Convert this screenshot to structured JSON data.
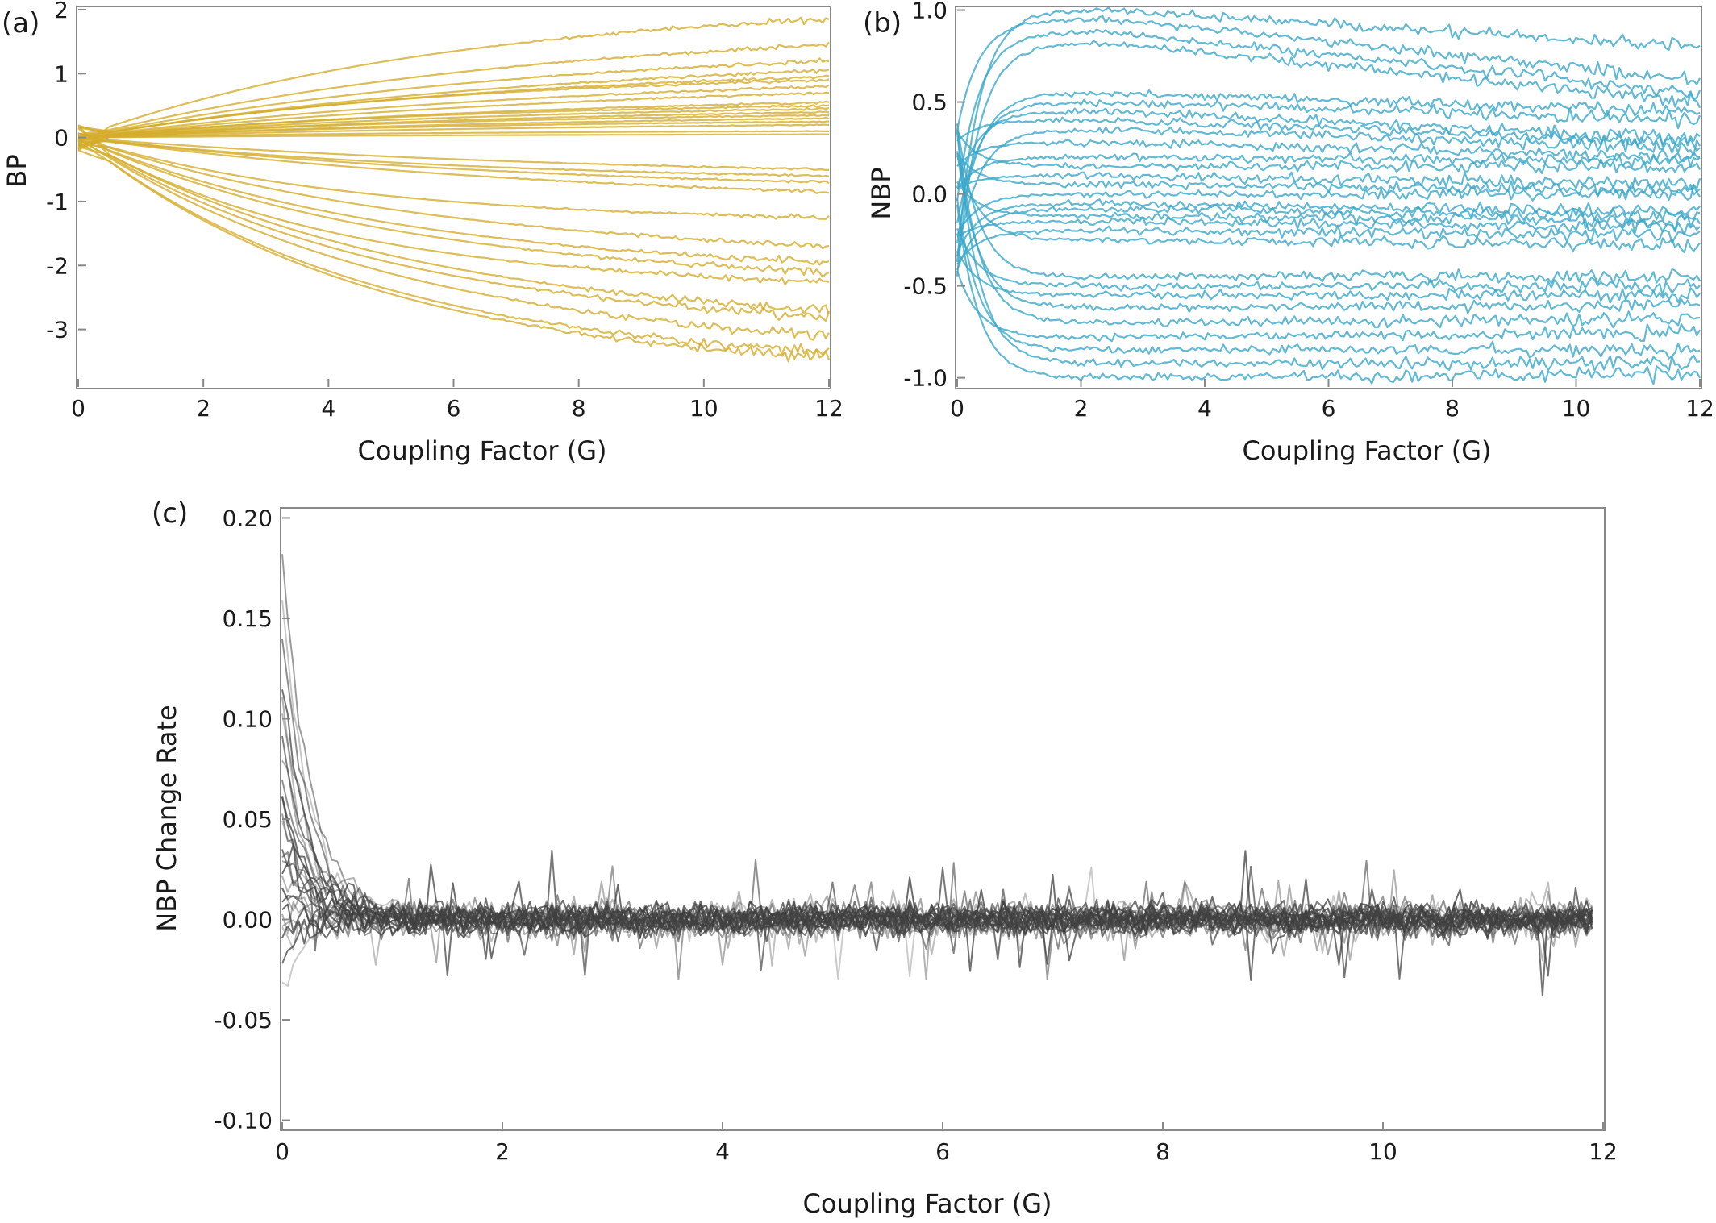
{
  "figure": {
    "panels": [
      {
        "label": "(a)",
        "title": "",
        "xlabel": "Coupling Factor (G)",
        "ylabel": "BP"
      },
      {
        "label": "(b)",
        "title": "",
        "xlabel": "Coupling Factor (G)",
        "ylabel": "NBP"
      },
      {
        "label": "(c)",
        "title": "",
        "xlabel": "Coupling Factor (G)",
        "ylabel": "NBP Change Rate"
      }
    ]
  },
  "chart_data": [
    {
      "type": "line",
      "panel": "(a)",
      "xlabel": "Coupling Factor (G)",
      "ylabel": "BP",
      "xlim": [
        0,
        12
      ],
      "ylim": [
        -3.9,
        2.05
      ],
      "xticks": [
        "0",
        "2",
        "4",
        "6",
        "8",
        "10",
        "12"
      ],
      "yticks": [
        "-3",
        "-2",
        "-1",
        "0",
        "1",
        "2"
      ],
      "ytick_values": [
        -3,
        -2,
        -1,
        0,
        1,
        2
      ],
      "grid": false,
      "color": "#d4ac2b",
      "series_final_values": [
        1.85,
        1.45,
        1.2,
        1.05,
        0.95,
        0.9,
        0.8,
        0.7,
        0.55,
        0.5,
        0.45,
        0.4,
        0.35,
        0.3,
        0.25,
        0.2,
        0.1,
        0.05,
        -0.5,
        -0.6,
        -0.7,
        -0.85,
        -1.25,
        -1.7,
        -1.95,
        -2.1,
        -2.25,
        -2.7,
        -2.8,
        -3.1,
        -3.35,
        -3.45
      ]
    },
    {
      "type": "line",
      "panel": "(b)",
      "xlabel": "Coupling Factor (G)",
      "ylabel": "NBP",
      "xlim": [
        0,
        12
      ],
      "ylim": [
        -1.05,
        1.02
      ],
      "xticks": [
        "0",
        "2",
        "4",
        "6",
        "8",
        "10",
        "12"
      ],
      "yticks": [
        "-1.0",
        "-0.5",
        "0.0",
        "0.5",
        "1.0"
      ],
      "ytick_values": [
        -1.0,
        -0.5,
        0.0,
        0.5,
        1.0
      ],
      "grid": false,
      "color": "#3aa7c9",
      "series_peak_values": [
        1.0,
        0.95,
        0.88,
        0.82,
        0.55,
        0.5,
        0.45,
        0.4,
        0.35,
        0.28,
        0.2,
        0.15,
        0.1,
        0.05,
        0.0,
        -0.05,
        -0.08,
        -0.12,
        -0.15,
        -0.2,
        -0.25,
        -0.45,
        -0.5,
        -0.55,
        -0.62,
        -0.7,
        -0.78,
        -0.85,
        -0.92,
        -1.0
      ],
      "series_final_values": [
        0.8,
        0.62,
        0.55,
        0.5,
        0.45,
        0.4,
        0.3,
        0.28,
        0.25,
        0.2,
        0.18,
        0.15,
        0.05,
        0.02,
        0.0,
        -0.1,
        -0.12,
        -0.15,
        -0.18,
        -0.22,
        -0.28,
        -0.45,
        -0.5,
        -0.55,
        -0.6,
        -0.68,
        -0.75,
        -0.85,
        -0.92,
        -0.98
      ]
    },
    {
      "type": "line",
      "panel": "(c)",
      "xlabel": "Coupling Factor (G)",
      "ylabel": "NBP Change Rate",
      "xlim": [
        0,
        12
      ],
      "ylim": [
        -0.105,
        0.205
      ],
      "xticks": [
        "0",
        "2",
        "4",
        "6",
        "8",
        "10",
        "12"
      ],
      "yticks": [
        "-0.10",
        "-0.05",
        "0.00",
        "0.05",
        "0.10",
        "0.15",
        "0.20"
      ],
      "ytick_values": [
        -0.1,
        -0.05,
        0.0,
        0.05,
        0.1,
        0.15,
        0.2
      ],
      "grid": false,
      "color": "#404040",
      "series_initial_values": [
        0.18,
        0.16,
        0.14,
        0.12,
        0.11,
        0.1,
        0.09,
        0.08,
        0.07,
        0.06,
        0.06,
        0.05,
        0.05,
        0.04,
        0.04,
        0.03,
        0.03,
        0.02,
        0.02,
        0.01,
        0.01,
        0.0,
        0.0,
        0.0,
        -0.01,
        -0.01,
        -0.02,
        -0.03
      ],
      "steady_state_mean": 0.0,
      "steady_state_noise": 0.012
    }
  ]
}
